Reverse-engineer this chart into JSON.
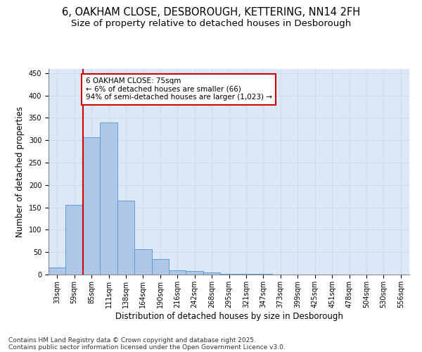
{
  "title_line1": "6, OAKHAM CLOSE, DESBOROUGH, KETTERING, NN14 2FH",
  "title_line2": "Size of property relative to detached houses in Desborough",
  "xlabel": "Distribution of detached houses by size in Desborough",
  "ylabel": "Number of detached properties",
  "categories": [
    "33sqm",
    "59sqm",
    "85sqm",
    "111sqm",
    "138sqm",
    "164sqm",
    "190sqm",
    "216sqm",
    "242sqm",
    "268sqm",
    "295sqm",
    "321sqm",
    "347sqm",
    "373sqm",
    "399sqm",
    "425sqm",
    "451sqm",
    "478sqm",
    "504sqm",
    "530sqm",
    "556sqm"
  ],
  "values": [
    15,
    155,
    307,
    340,
    165,
    57,
    35,
    10,
    8,
    5,
    2,
    1,
    1,
    0,
    0,
    0,
    0,
    0,
    0,
    0,
    0
  ],
  "bar_color": "#aec6e8",
  "bar_edge_color": "#5a9fd4",
  "annotation_text": "6 OAKHAM CLOSE: 75sqm\n← 6% of detached houses are smaller (66)\n94% of semi-detached houses are larger (1,023) →",
  "annotation_box_color": "#ffffff",
  "annotation_box_edge": "#cc0000",
  "red_line_color": "#cc0000",
  "grid_color": "#ccd9e8",
  "background_color": "#dce8f5",
  "ylim": [
    0,
    460
  ],
  "yticks": [
    0,
    50,
    100,
    150,
    200,
    250,
    300,
    350,
    400,
    450
  ],
  "footer_line1": "Contains HM Land Registry data © Crown copyright and database right 2025.",
  "footer_line2": "Contains public sector information licensed under the Open Government Licence v3.0.",
  "title_fontsize": 10.5,
  "subtitle_fontsize": 9.5,
  "tick_fontsize": 7,
  "label_fontsize": 8.5,
  "annotation_fontsize": 7.5,
  "footer_fontsize": 6.5
}
